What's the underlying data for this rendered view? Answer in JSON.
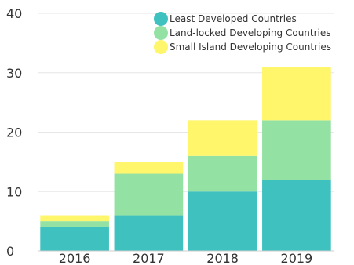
{
  "chart_data": {
    "type": "bar",
    "stacked": true,
    "categories": [
      "2016",
      "2017",
      "2018",
      "2019"
    ],
    "series": [
      {
        "name": "Least Developed Countries",
        "values": [
          4,
          6,
          10,
          12
        ],
        "color": "#3fc1c0"
      },
      {
        "name": "Land-locked Developing Countries",
        "values": [
          1,
          7,
          6,
          10
        ],
        "color": "#94e2a3"
      },
      {
        "name": "Small Island Developing Countries",
        "values": [
          1,
          2,
          6,
          9
        ],
        "color": "#fff66b"
      }
    ],
    "ylim": [
      0,
      40
    ],
    "yticks": [
      0,
      10,
      20,
      30,
      40
    ],
    "grid": true,
    "legend_position": "top-right"
  }
}
